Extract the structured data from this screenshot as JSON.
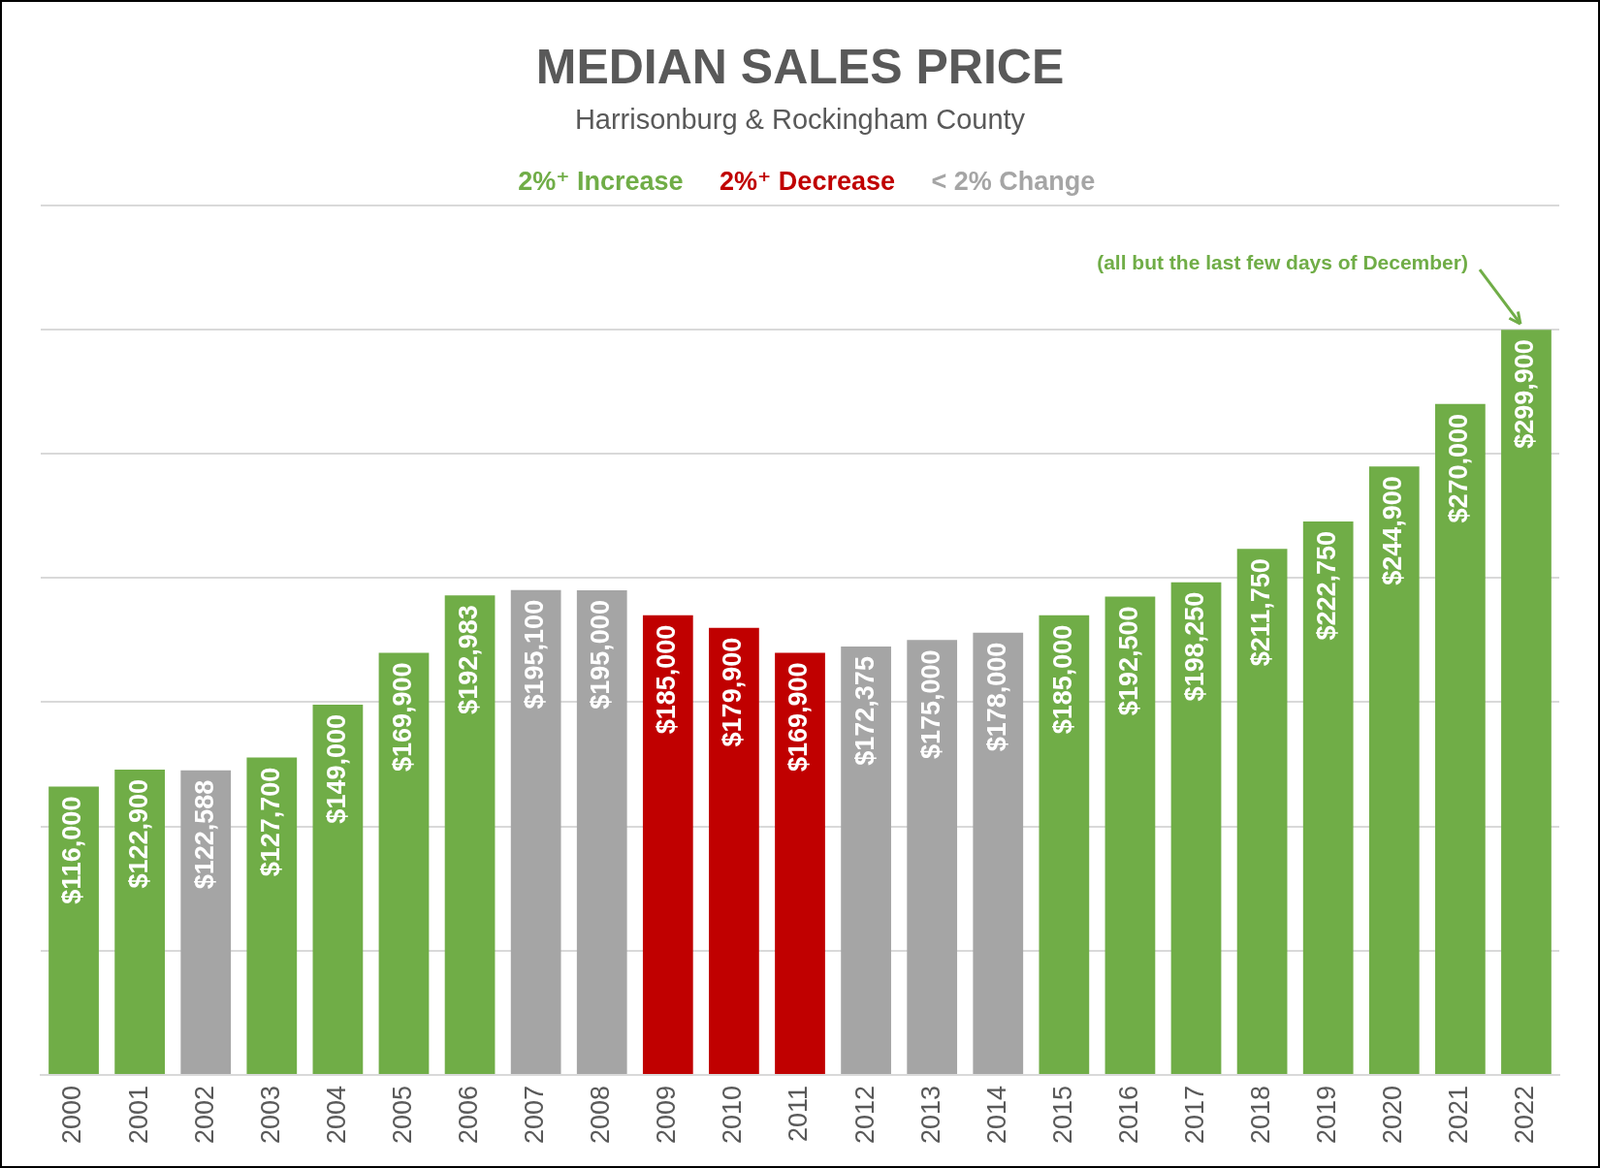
{
  "chart_data": {
    "type": "bar",
    "title": "MEDIAN SALES PRICE",
    "subtitle": "Harrisonburg & Rockingham County",
    "annotation": "(all but the last few days of December)",
    "categories": [
      "2000",
      "2001",
      "2002",
      "2003",
      "2004",
      "2005",
      "2006",
      "2007",
      "2008",
      "2009",
      "2010",
      "2011",
      "2012",
      "2013",
      "2014",
      "2015",
      "2016",
      "2017",
      "2018",
      "2019",
      "2020",
      "2021",
      "2022"
    ],
    "series": [
      {
        "name": "2%⁺ Increase",
        "color": "#70ad47",
        "values": [
          116000,
          122900,
          null,
          127700,
          149000,
          169900,
          192983,
          null,
          null,
          null,
          null,
          null,
          null,
          null,
          null,
          185000,
          192500,
          198250,
          211750,
          222750,
          244900,
          270000,
          299900
        ],
        "value_labels": [
          "$116,000",
          "$122,900",
          null,
          "$127,700",
          "$149,000",
          "$169,900",
          "$192,983",
          null,
          null,
          null,
          null,
          null,
          null,
          null,
          null,
          "$185,000",
          "$192,500",
          "$198,250",
          "$211,750",
          "$222,750",
          "$244,900",
          "$270,000",
          "$299,900"
        ]
      },
      {
        "name": "2%⁺ Decrease",
        "color": "#c00000",
        "values": [
          null,
          null,
          null,
          null,
          null,
          null,
          null,
          null,
          null,
          185000,
          179900,
          169900,
          null,
          null,
          null,
          null,
          null,
          null,
          null,
          null,
          null,
          null,
          null
        ],
        "value_labels": [
          null,
          null,
          null,
          null,
          null,
          null,
          null,
          null,
          null,
          "$185,000",
          "$179,900",
          "$169,900",
          null,
          null,
          null,
          null,
          null,
          null,
          null,
          null,
          null,
          null,
          null
        ]
      },
      {
        "name": "< 2% Change",
        "color": "#a5a5a5",
        "values": [
          null,
          null,
          122588,
          null,
          null,
          null,
          null,
          195100,
          195000,
          null,
          null,
          null,
          172375,
          175000,
          178000,
          null,
          null,
          null,
          null,
          null,
          null,
          null,
          null
        ],
        "value_labels": [
          null,
          null,
          "$122,588",
          null,
          null,
          null,
          null,
          "$195,100",
          "$195,000",
          null,
          null,
          null,
          "$172,375",
          "$175,000",
          "$178,000",
          null,
          null,
          null,
          null,
          null,
          null,
          null,
          null
        ]
      }
    ],
    "ylim": [
      0,
      350000
    ],
    "yticks": [
      0,
      50000,
      100000,
      150000,
      200000,
      250000,
      300000,
      350000
    ],
    "grid": true,
    "legend": "top",
    "data_labels": true,
    "tick_labels": "x"
  }
}
